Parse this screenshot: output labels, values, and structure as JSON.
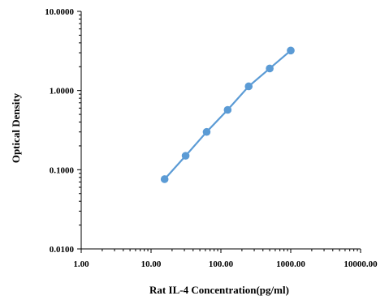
{
  "chart_data": {
    "type": "line",
    "title": "",
    "xlabel": "Rat IL-4  Concentration(pg/ml)",
    "ylabel": "Optical Density",
    "x_scale": "log",
    "y_scale": "log",
    "xlim": [
      1,
      10000
    ],
    "ylim": [
      0.01,
      10
    ],
    "x_ticks": [
      1,
      10,
      100,
      1000,
      10000
    ],
    "x_tick_labels": [
      "1.00",
      "10.00",
      "100.00",
      "1000.00",
      "10000.00"
    ],
    "y_ticks": [
      0.01,
      0.1,
      1,
      10
    ],
    "y_tick_labels": [
      "0.0100",
      "0.1000",
      "1.0000",
      "10.0000"
    ],
    "grid": false,
    "legend": "none",
    "series": [
      {
        "x": [
          15.63,
          31.25,
          62.5,
          125,
          250,
          500,
          1000
        ],
        "y": [
          0.076,
          0.15,
          0.3,
          0.57,
          1.13,
          1.9,
          3.2
        ],
        "color": "#5b9bd5"
      }
    ]
  }
}
